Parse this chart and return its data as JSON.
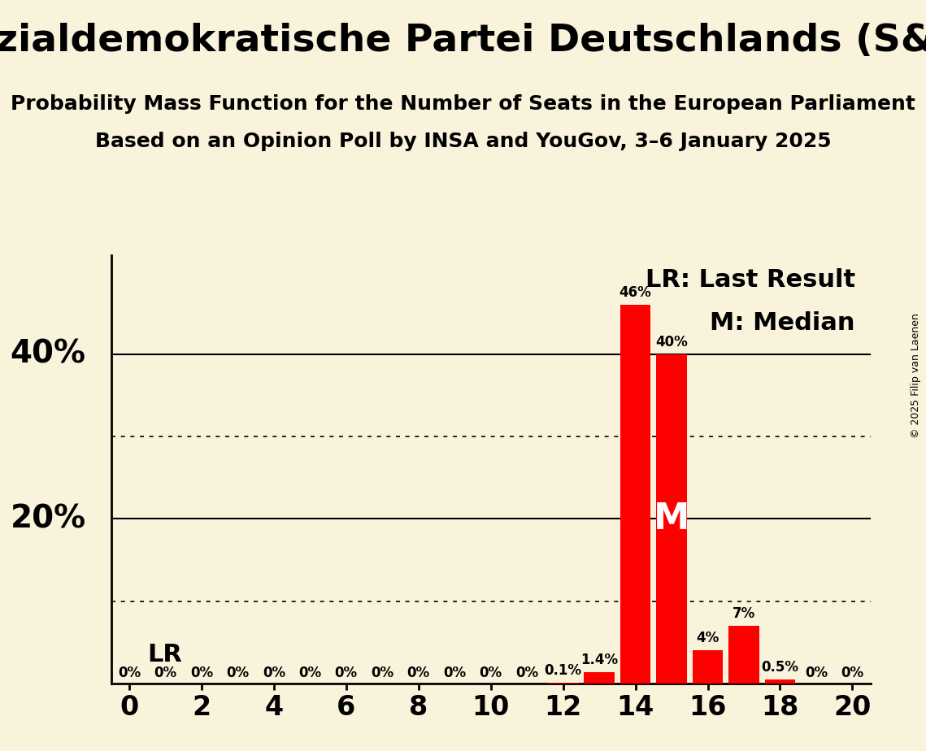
{
  "title": "Sozialdemokratische Partei Deutschlands (S&D)",
  "subtitle1": "Probability Mass Function for the Number of Seats in the European Parliament",
  "subtitle2": "Based on an Opinion Poll by INSA and YouGov, 3–6 January 2025",
  "copyright": "© 2025 Filip van Laenen",
  "seats": [
    0,
    1,
    2,
    3,
    4,
    5,
    6,
    7,
    8,
    9,
    10,
    11,
    12,
    13,
    14,
    15,
    16,
    17,
    18,
    19,
    20
  ],
  "probabilities": [
    0,
    0,
    0,
    0,
    0,
    0,
    0,
    0,
    0,
    0,
    0,
    0,
    0.1,
    1.4,
    46,
    40,
    4,
    7,
    0.5,
    0,
    0
  ],
  "prob_labels": [
    "0%",
    "0%",
    "0%",
    "0%",
    "0%",
    "0%",
    "0%",
    "0%",
    "0%",
    "0%",
    "0%",
    "0%",
    "0.1%",
    "1.4%",
    "46%",
    "40%",
    "4%",
    "7%",
    "0.5%",
    "0%",
    "0%"
  ],
  "bar_color": "#ff0000",
  "background_color": "#faf3dc",
  "median_seat": 15,
  "xlim": [
    -0.5,
    20.5
  ],
  "ylim": [
    0,
    52
  ],
  "solid_hlines": [
    20,
    40
  ],
  "dotted_hlines": [
    10,
    30
  ],
  "bar_width": 0.85,
  "title_fontsize": 34,
  "subtitle_fontsize": 18,
  "tick_fontsize": 24,
  "bar_label_fontsize": 12,
  "legend_fontsize": 22,
  "lr_label_fontsize": 22,
  "ylabel_fontsize": 28,
  "xticks": [
    0,
    2,
    4,
    6,
    8,
    10,
    12,
    14,
    16,
    18,
    20
  ]
}
